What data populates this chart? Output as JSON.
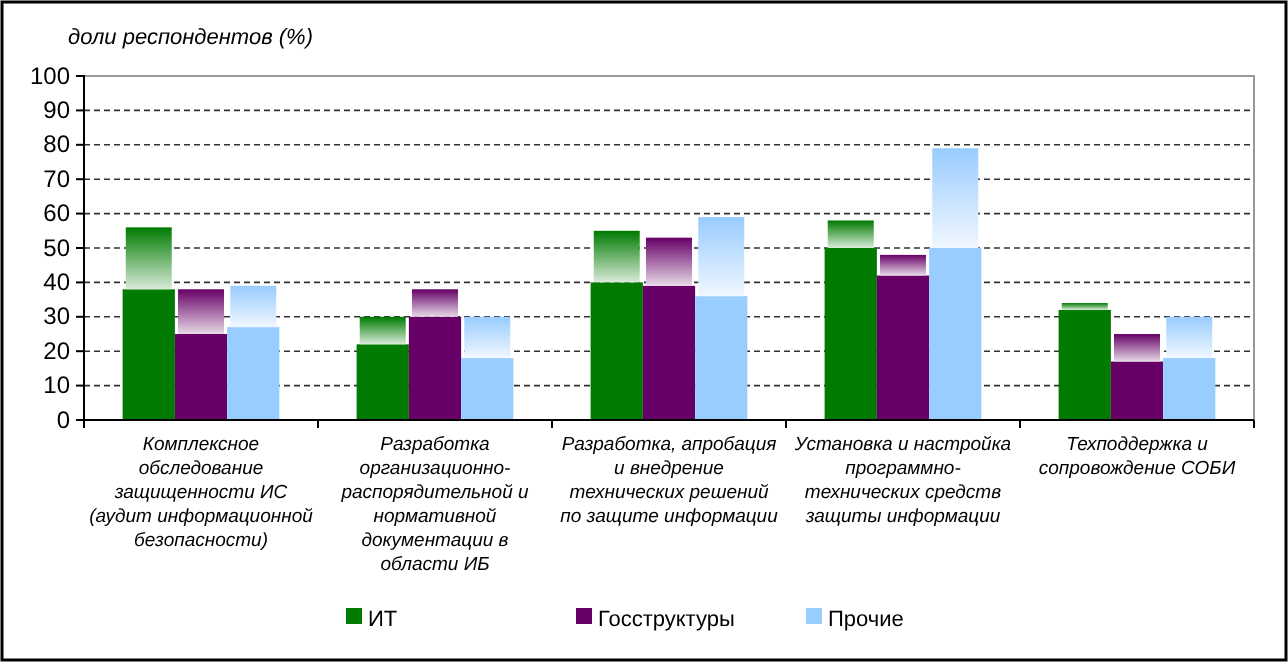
{
  "chart_data": {
    "type": "bar",
    "ylabel": "доли респондентов (%)",
    "categories": [
      "Комплексное обследование защищенности ИС (аудит информационной безопасности)",
      "Разработка организационно-распорядительной и нормативной документации в области ИБ",
      "Разработка, апробация и внедрение технических решений по защите информации",
      "Установка и настройка программно-технических средств защиты информации",
      "Техподдержка и сопровождение СОБИ"
    ],
    "series": [
      {
        "name": "ИТ",
        "color": "#007a00",
        "values": [
          38,
          22,
          40,
          50,
          32
        ]
      },
      {
        "color": "#007a00",
        "values": [
          18,
          8,
          15,
          8,
          2
        ],
        "base": [
          38,
          22,
          40,
          50,
          32
        ]
      },
      {
        "name": "Госструктуры",
        "color": "#660066",
        "values": [
          25,
          30,
          39,
          42,
          17
        ]
      },
      {
        "color": "#660066",
        "values": [
          13,
          8,
          14,
          6,
          8
        ],
        "base": [
          25,
          30,
          39,
          42,
          17
        ]
      },
      {
        "name": "Прочие",
        "color": "#99ccff",
        "values": [
          27,
          18,
          36,
          50,
          18
        ]
      },
      {
        "color": "#99ccff",
        "values": [
          12,
          12,
          23,
          29,
          12
        ],
        "base": [
          27,
          18,
          36,
          50,
          18
        ]
      }
    ],
    "ylim": [
      0,
      100
    ],
    "yticks": [
      0,
      10,
      20,
      30,
      40,
      50,
      60,
      70,
      80,
      90,
      100
    ],
    "grid": "y",
    "legend": "bottom"
  }
}
